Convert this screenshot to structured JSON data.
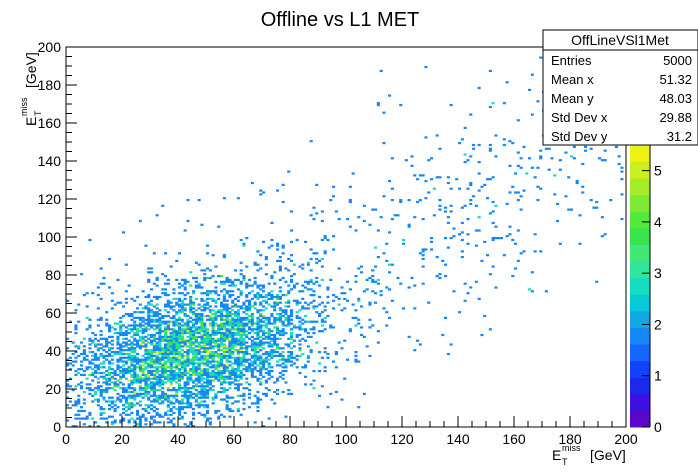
{
  "chart_data": {
    "type": "heatmap",
    "title": "Offline vs L1  MET",
    "x_axis": {
      "label_main": "E",
      "label_sub": "T",
      "label_sup": "miss",
      "label_unit": "[GeV]",
      "range": [
        0,
        200
      ],
      "ticks": [
        "0",
        "20",
        "40",
        "60",
        "80",
        "100",
        "120",
        "140",
        "160",
        "180",
        "200"
      ]
    },
    "y_axis": {
      "label_main": "E",
      "label_sub": "T",
      "label_sup": "miss",
      "label_unit": "[GeV]",
      "range": [
        0,
        200
      ],
      "ticks": [
        "0",
        "20",
        "40",
        "60",
        "80",
        "100",
        "120",
        "140",
        "160",
        "180",
        "200"
      ]
    },
    "z_axis": {
      "range": [
        0,
        5.5
      ],
      "ticks": [
        "0",
        "1",
        "2",
        "3",
        "4",
        "5"
      ]
    },
    "bins": {
      "x": 200,
      "y": 200
    },
    "stats": {
      "name": "OffLineVSl1Met",
      "rows": [
        {
          "label": "Entries",
          "value": "5000"
        },
        {
          "label": "Mean x",
          "value": "51.32"
        },
        {
          "label": "Mean y",
          "value": "48.03"
        },
        {
          "label": "Std Dev x",
          "value": "29.88"
        },
        {
          "label": "Std Dev y",
          "value": "31.2"
        }
      ]
    },
    "palette": [
      "#5b07c9",
      "#3c10e0",
      "#1a2ae8",
      "#1043f5",
      "#1567fb",
      "#1688f5",
      "#11a9e4",
      "#08c9d6",
      "#16dcc0",
      "#2ee59b",
      "#3fe877",
      "#3be44e",
      "#52e83c",
      "#7eea34",
      "#a5ec2a",
      "#cbef1f",
      "#eef214"
    ]
  }
}
